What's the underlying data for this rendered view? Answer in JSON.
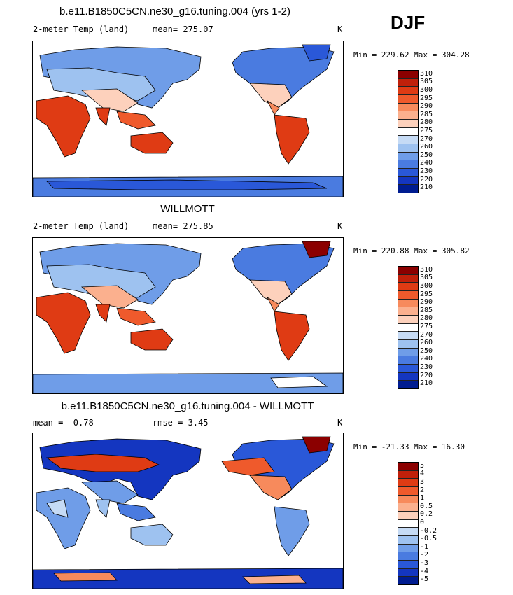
{
  "season": "DJF",
  "panels": [
    {
      "title": "b.e11.B1850C5CN.ne30_g16.tuning.004 (yrs 1-2)",
      "left_label": "2-meter Temp (land)",
      "center_label": "mean= 275.07",
      "units": "K",
      "minmax": "Min = 229.62 Max = 304.28",
      "levels": [
        "310",
        "305",
        "300",
        "295",
        "290",
        "285",
        "280",
        "275",
        "270",
        "260",
        "250",
        "240",
        "230",
        "220",
        "210"
      ],
      "colors": [
        "#8b0000",
        "#c0200a",
        "#df3b14",
        "#ef5a2c",
        "#f78a5c",
        "#fbb08e",
        "#fdd1bc",
        "#ffffff",
        "#c6dbf5",
        "#9ec2f0",
        "#6f9de8",
        "#4a7be0",
        "#2a58d8",
        "#1436c0",
        "#001c90"
      ]
    },
    {
      "title": "WILLMOTT",
      "left_label": "2-meter Temp (land)",
      "center_label": "mean= 275.85",
      "units": "K",
      "minmax": "Min = 220.88 Max = 305.82",
      "levels": [
        "310",
        "305",
        "300",
        "295",
        "290",
        "285",
        "280",
        "275",
        "270",
        "260",
        "250",
        "240",
        "230",
        "220",
        "210"
      ],
      "colors": [
        "#8b0000",
        "#c0200a",
        "#df3b14",
        "#ef5a2c",
        "#f78a5c",
        "#fbb08e",
        "#fdd1bc",
        "#ffffff",
        "#c6dbf5",
        "#9ec2f0",
        "#6f9de8",
        "#4a7be0",
        "#2a58d8",
        "#1436c0",
        "#001c90"
      ]
    },
    {
      "title": "b.e11.B1850C5CN.ne30_g16.tuning.004 - WILLMOTT",
      "left_label": "mean =  -0.78",
      "center_label": "rmse =   3.45",
      "units": "K",
      "minmax": "Min = -21.33 Max =  16.30",
      "levels": [
        "5",
        "4",
        "3",
        "2",
        "1",
        "0.5",
        "0.2",
        "0",
        "-0.2",
        "-0.5",
        "-1",
        "-2",
        "-3",
        "-4",
        "-5"
      ],
      "colors": [
        "#8b0000",
        "#c0200a",
        "#df3b14",
        "#ef5a2c",
        "#f78a5c",
        "#fbb08e",
        "#fdd1bc",
        "#ffffff",
        "#c6dbf5",
        "#9ec2f0",
        "#6f9de8",
        "#4a7be0",
        "#2a58d8",
        "#1436c0",
        "#001c90"
      ]
    }
  ]
}
